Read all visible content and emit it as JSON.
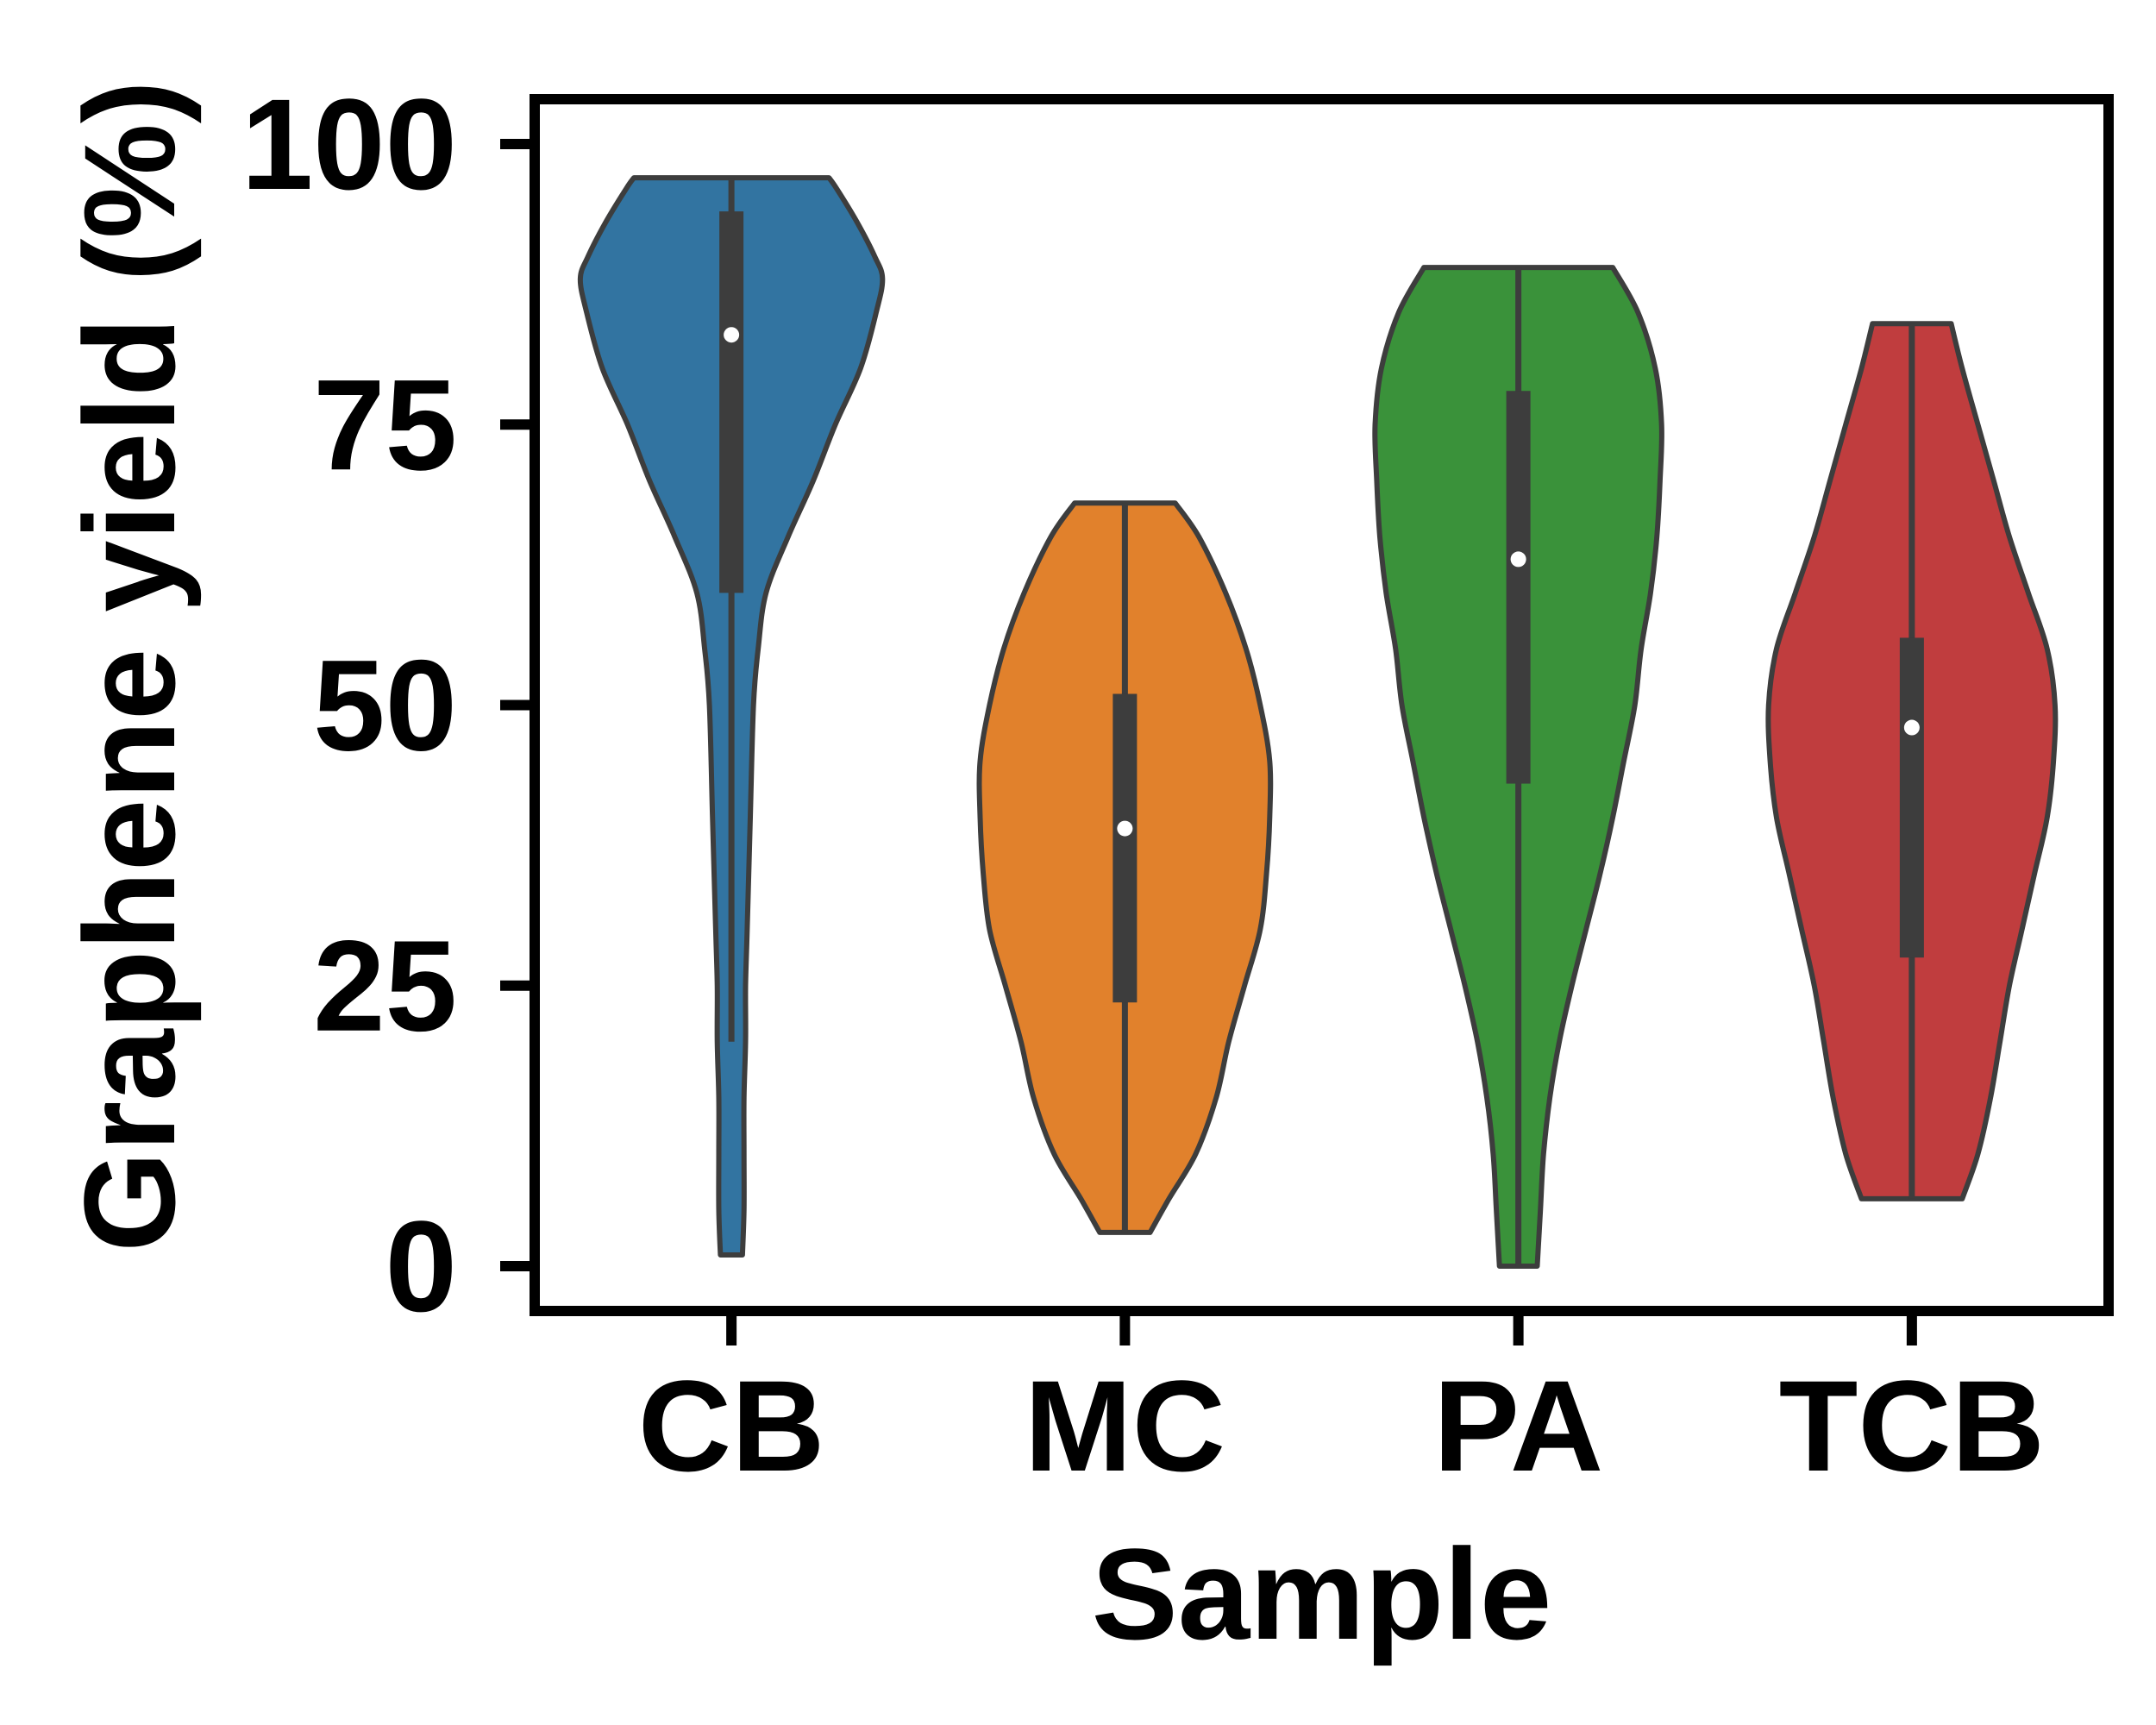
{
  "chart_data": {
    "type": "violin",
    "xlabel": "Sample",
    "ylabel": "Graphene yield (%)",
    "ylim": [
      -4,
      104
    ],
    "yticks": [
      0,
      25,
      50,
      75,
      100
    ],
    "grid": false,
    "categories": [
      "CB",
      "MC",
      "PA",
      "TCB"
    ],
    "violins": [
      {
        "name": "CB",
        "color": "#3274a1",
        "min": 1,
        "max": 97,
        "q1": 60,
        "q3": 94,
        "median": 83,
        "whisker_low": 20,
        "whisker_high": 97,
        "profile": [
          [
            1,
            0.07
          ],
          [
            5,
            0.08
          ],
          [
            10,
            0.08
          ],
          [
            15,
            0.08
          ],
          [
            20,
            0.09
          ],
          [
            25,
            0.09
          ],
          [
            30,
            0.1
          ],
          [
            40,
            0.12
          ],
          [
            50,
            0.14
          ],
          [
            55,
            0.17
          ],
          [
            60,
            0.22
          ],
          [
            65,
            0.36
          ],
          [
            70,
            0.52
          ],
          [
            75,
            0.66
          ],
          [
            80,
            0.82
          ],
          [
            85,
            0.92
          ],
          [
            88,
            0.96
          ],
          [
            90,
            0.91
          ],
          [
            93,
            0.8
          ],
          [
            96,
            0.67
          ],
          [
            97,
            0.62
          ]
        ]
      },
      {
        "name": "MC",
        "color": "#e1812c",
        "min": 3,
        "max": 68,
        "q1": 23.5,
        "q3": 51,
        "median": 39,
        "whisker_low": 3,
        "whisker_high": 68,
        "profile": [
          [
            3,
            0.16
          ],
          [
            6,
            0.28
          ],
          [
            10,
            0.45
          ],
          [
            15,
            0.58
          ],
          [
            20,
            0.66
          ],
          [
            25,
            0.76
          ],
          [
            30,
            0.86
          ],
          [
            35,
            0.9
          ],
          [
            40,
            0.92
          ],
          [
            45,
            0.92
          ],
          [
            50,
            0.86
          ],
          [
            55,
            0.77
          ],
          [
            60,
            0.64
          ],
          [
            65,
            0.47
          ],
          [
            68,
            0.32
          ]
        ]
      },
      {
        "name": "PA",
        "color": "#3a923a",
        "min": 0,
        "max": 89,
        "q1": 43,
        "q3": 78,
        "median": 63,
        "whisker_low": 0,
        "whisker_high": 89,
        "profile": [
          [
            0,
            0.12
          ],
          [
            5,
            0.14
          ],
          [
            10,
            0.16
          ],
          [
            15,
            0.2
          ],
          [
            20,
            0.26
          ],
          [
            25,
            0.34
          ],
          [
            30,
            0.43
          ],
          [
            35,
            0.52
          ],
          [
            40,
            0.6
          ],
          [
            45,
            0.67
          ],
          [
            50,
            0.74
          ],
          [
            55,
            0.78
          ],
          [
            60,
            0.84
          ],
          [
            65,
            0.88
          ],
          [
            70,
            0.9
          ],
          [
            75,
            0.91
          ],
          [
            80,
            0.87
          ],
          [
            85,
            0.76
          ],
          [
            89,
            0.6
          ]
        ]
      },
      {
        "name": "TCB",
        "color": "#c03d3e",
        "min": 6,
        "max": 84,
        "q1": 27.5,
        "q3": 56,
        "median": 48,
        "whisker_low": 6,
        "whisker_high": 84,
        "profile": [
          [
            6,
            0.32
          ],
          [
            10,
            0.42
          ],
          [
            15,
            0.5
          ],
          [
            20,
            0.56
          ],
          [
            25,
            0.62
          ],
          [
            30,
            0.7
          ],
          [
            35,
            0.78
          ],
          [
            40,
            0.86
          ],
          [
            45,
            0.9
          ],
          [
            50,
            0.91
          ],
          [
            55,
            0.86
          ],
          [
            60,
            0.74
          ],
          [
            65,
            0.62
          ],
          [
            70,
            0.52
          ],
          [
            75,
            0.42
          ],
          [
            80,
            0.32
          ],
          [
            84,
            0.25
          ]
        ]
      }
    ]
  }
}
